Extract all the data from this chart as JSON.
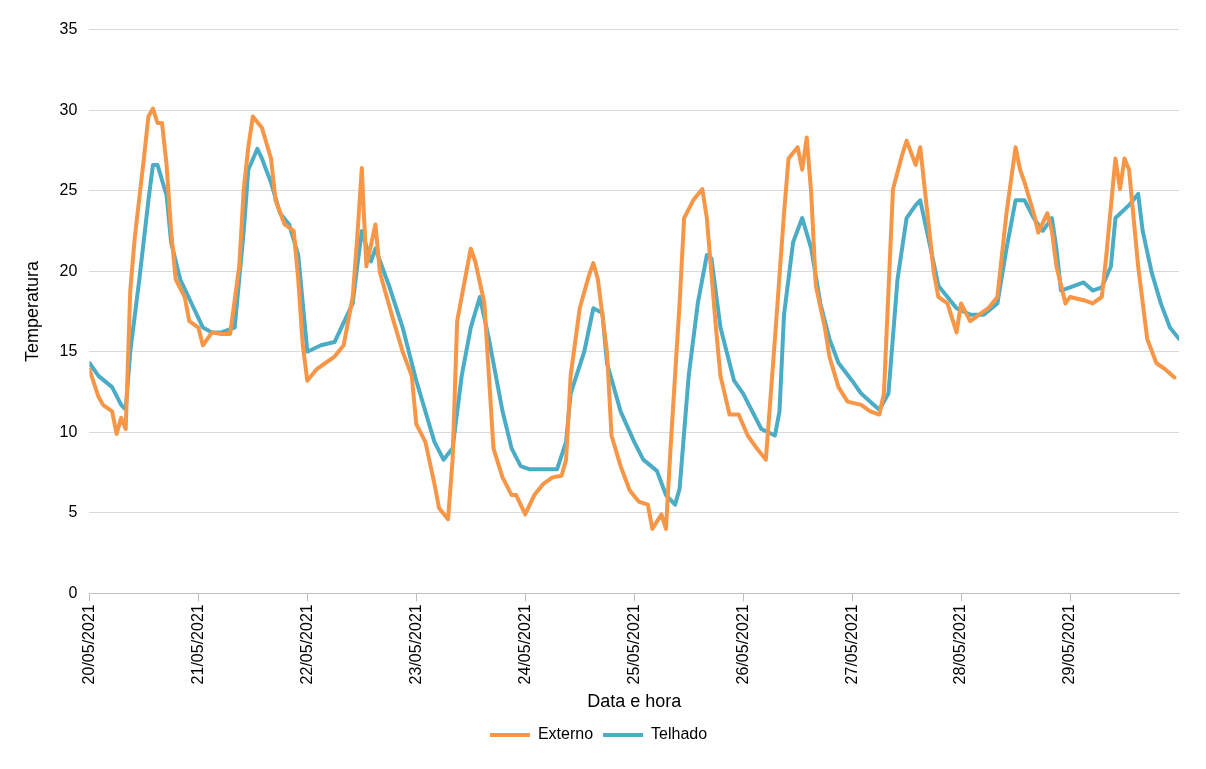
{
  "chart_data": {
    "type": "line",
    "xlabel": "Data e hora",
    "ylabel": "Temperatura",
    "xlim": [
      "2021-05-20",
      "2021-05-30"
    ],
    "xticks": [
      {
        "value": "2021-05-20",
        "label": "20/05/2021"
      },
      {
        "value": "2021-05-21",
        "label": "21/05/2021"
      },
      {
        "value": "2021-05-22",
        "label": "22/05/2021"
      },
      {
        "value": "2021-05-23",
        "label": "23/05/2021"
      },
      {
        "value": "2021-05-24",
        "label": "24/05/2021"
      },
      {
        "value": "2021-05-25",
        "label": "25/05/2021"
      },
      {
        "value": "2021-05-26",
        "label": "26/05/2021"
      },
      {
        "value": "2021-05-27",
        "label": "27/05/2021"
      },
      {
        "value": "2021-05-28",
        "label": "28/05/2021"
      },
      {
        "value": "2021-05-29",
        "label": "29/05/2021"
      }
    ],
    "ylim": [
      0,
      35
    ],
    "yticks": [
      0,
      5,
      10,
      15,
      20,
      25,
      30,
      35
    ],
    "grid": "y",
    "legend": "bottom",
    "marker": "none",
    "line_style": "solid",
    "series": [
      {
        "name": "Externo",
        "color": "#f79646",
        "x": [
          "2021-05-20T00:00",
          "2021-05-20T02:00",
          "2021-05-20T03:00",
          "2021-05-20T05:00",
          "2021-05-20T06:00",
          "2021-05-20T07:00",
          "2021-05-20T08:00",
          "2021-05-20T09:00",
          "2021-05-20T10:00",
          "2021-05-20T12:00",
          "2021-05-20T13:00",
          "2021-05-20T14:00",
          "2021-05-20T15:00",
          "2021-05-20T16:00",
          "2021-05-20T17:00",
          "2021-05-20T18:00",
          "2021-05-20T19:00",
          "2021-05-20T21:00",
          "2021-05-20T22:00",
          "2021-05-21T00:00",
          "2021-05-21T01:00",
          "2021-05-21T03:00",
          "2021-05-21T05:00",
          "2021-05-21T07:00",
          "2021-05-21T09:00",
          "2021-05-21T10:00",
          "2021-05-21T11:00",
          "2021-05-21T12:00",
          "2021-05-21T14:00",
          "2021-05-21T16:00",
          "2021-05-21T17:00",
          "2021-05-21T19:00",
          "2021-05-21T21:00",
          "2021-05-21T22:00",
          "2021-05-21T23:00",
          "2021-05-22T00:00",
          "2021-05-22T02:00",
          "2021-05-22T04:00",
          "2021-05-22T06:00",
          "2021-05-22T08:00",
          "2021-05-22T10:00",
          "2021-05-22T11:00",
          "2021-05-22T12:00",
          "2021-05-22T13:00",
          "2021-05-22T15:00",
          "2021-05-22T16:00",
          "2021-05-22T19:00",
          "2021-05-22T21:00",
          "2021-05-22T23:00",
          "2021-05-23T00:00",
          "2021-05-23T02:00",
          "2021-05-23T04:00",
          "2021-05-23T05:00",
          "2021-05-23T07:00",
          "2021-05-23T08:00",
          "2021-05-23T09:00",
          "2021-05-23T11:00",
          "2021-05-23T12:00",
          "2021-05-23T13:00",
          "2021-05-23T15:00",
          "2021-05-23T16:00",
          "2021-05-23T17:00",
          "2021-05-23T19:00",
          "2021-05-23T21:00",
          "2021-05-23T22:00",
          "2021-05-24T00:00",
          "2021-05-24T02:00",
          "2021-05-24T04:00",
          "2021-05-24T06:00",
          "2021-05-24T08:00",
          "2021-05-24T09:00",
          "2021-05-24T10:00",
          "2021-05-24T12:00",
          "2021-05-24T14:00",
          "2021-05-24T15:00",
          "2021-05-24T16:00",
          "2021-05-24T18:00",
          "2021-05-24T19:00",
          "2021-05-24T21:00",
          "2021-05-24T23:00",
          "2021-05-25T01:00",
          "2021-05-25T03:00",
          "2021-05-25T04:00",
          "2021-05-25T06:00",
          "2021-05-25T07:00",
          "2021-05-25T08:00",
          "2021-05-25T10:00",
          "2021-05-25T11:00",
          "2021-05-25T13:00",
          "2021-05-25T15:00",
          "2021-05-25T16:00",
          "2021-05-25T18:00",
          "2021-05-25T19:00",
          "2021-05-25T21:00",
          "2021-05-25T23:00",
          "2021-05-26T01:00",
          "2021-05-26T03:00",
          "2021-05-26T05:00",
          "2021-05-26T07:00",
          "2021-05-26T09:00",
          "2021-05-26T10:00",
          "2021-05-26T12:00",
          "2021-05-26T13:00",
          "2021-05-26T14:00",
          "2021-05-26T15:00",
          "2021-05-26T16:00",
          "2021-05-26T18:00",
          "2021-05-26T19:00",
          "2021-05-26T21:00",
          "2021-05-26T23:00",
          "2021-05-27T02:00",
          "2021-05-27T04:00",
          "2021-05-27T06:00",
          "2021-05-27T07:00",
          "2021-05-27T09:00",
          "2021-05-27T11:00",
          "2021-05-27T12:00",
          "2021-05-27T14:00",
          "2021-05-27T15:00",
          "2021-05-27T16:00",
          "2021-05-27T18:00",
          "2021-05-27T19:00",
          "2021-05-27T21:00",
          "2021-05-27T23:00",
          "2021-05-28T00:00",
          "2021-05-28T02:00",
          "2021-05-28T04:00",
          "2021-05-28T06:00",
          "2021-05-28T08:00",
          "2021-05-28T10:00",
          "2021-05-28T12:00",
          "2021-05-28T13:00",
          "2021-05-28T14:00",
          "2021-05-28T16:00",
          "2021-05-28T17:00",
          "2021-05-28T19:00",
          "2021-05-28T20:00",
          "2021-05-28T21:00",
          "2021-05-28T23:00",
          "2021-05-29T00:00",
          "2021-05-29T03:00",
          "2021-05-29T05:00",
          "2021-05-29T07:00",
          "2021-05-29T08:00",
          "2021-05-29T10:00",
          "2021-05-29T11:00",
          "2021-05-29T12:00",
          "2021-05-29T13:00",
          "2021-05-29T15:00",
          "2021-05-29T17:00",
          "2021-05-29T19:00",
          "2021-05-29T21:00",
          "2021-05-29T23:00"
        ],
        "values": [
          13.9,
          12.2,
          11.7,
          11.3,
          9.9,
          10.9,
          10.2,
          18.8,
          22.1,
          27,
          29.6,
          30.1,
          29.2,
          29.2,
          26.6,
          22.5,
          19.5,
          18.4,
          16.9,
          16.5,
          15.4,
          16.2,
          16.1,
          16.1,
          20.3,
          25.1,
          27.7,
          29.6,
          28.9,
          27,
          24.4,
          22.9,
          22.5,
          19.5,
          15.4,
          13.2,
          13.9,
          14.3,
          14.7,
          15.4,
          18.4,
          22.1,
          26.4,
          20.3,
          22.9,
          19.9,
          16.9,
          15,
          13.5,
          10.5,
          9.4,
          6.8,
          5.3,
          4.6,
          8.3,
          16.9,
          19.9,
          21.4,
          20.6,
          18,
          13.5,
          9,
          7.2,
          6.1,
          6.1,
          4.9,
          6.1,
          6.8,
          7.2,
          7.3,
          8.3,
          13.5,
          17.7,
          19.7,
          20.5,
          19.5,
          15,
          9.8,
          7.9,
          6.4,
          5.7,
          5.5,
          4,
          4.9,
          4,
          9,
          18,
          23.3,
          24.4,
          25.1,
          23.3,
          16.5,
          13.5,
          11.1,
          11.1,
          9.8,
          9,
          8.3,
          15.8,
          23.6,
          27,
          27.7,
          26.3,
          28.3,
          24.8,
          19.1,
          16.5,
          14.7,
          12.8,
          11.9,
          11.7,
          11.3,
          11.1,
          12.4,
          25.1,
          27.2,
          28.1,
          26.6,
          27.7,
          25.1,
          19.9,
          18.4,
          18,
          16.2,
          18,
          16.9,
          17.3,
          17.7,
          18.4,
          23.6,
          27.7,
          26.3,
          25.5,
          23.6,
          22.4,
          23.6,
          22.5,
          20.3,
          18,
          18.4,
          18.2,
          18,
          18.4,
          21,
          27,
          25.1,
          27,
          26.3,
          20.3,
          15.8,
          14.3,
          13.9,
          13.4
        ]
      },
      {
        "name": "Telhado",
        "color": "#4bacc6",
        "x": [
          "2021-05-20T00:00",
          "2021-05-20T02:00",
          "2021-05-20T05:00",
          "2021-05-20T07:00",
          "2021-05-20T08:00",
          "2021-05-20T09:00",
          "2021-05-20T11:00",
          "2021-05-20T13:00",
          "2021-05-20T14:00",
          "2021-05-20T15:00",
          "2021-05-20T17:00",
          "2021-05-20T18:00",
          "2021-05-20T20:00",
          "2021-05-20T23:00",
          "2021-05-21T01:00",
          "2021-05-21T03:00",
          "2021-05-21T05:00",
          "2021-05-21T08:00",
          "2021-05-21T10:00",
          "2021-05-21T11:00",
          "2021-05-21T13:00",
          "2021-05-21T14:00",
          "2021-05-21T16:00",
          "2021-05-21T18:00",
          "2021-05-21T20:00",
          "2021-05-21T22:00",
          "2021-05-21T23:00",
          "2021-05-22T00:00",
          "2021-05-22T03:00",
          "2021-05-22T06:00",
          "2021-05-22T10:00",
          "2021-05-22T11:00",
          "2021-05-22T12:00",
          "2021-05-22T14:00",
          "2021-05-22T15:00",
          "2021-05-22T18:00",
          "2021-05-22T21:00",
          "2021-05-23T00:00",
          "2021-05-23T04:00",
          "2021-05-23T06:00",
          "2021-05-23T08:00",
          "2021-05-23T10:00",
          "2021-05-23T12:00",
          "2021-05-23T14:00",
          "2021-05-23T16:00",
          "2021-05-23T19:00",
          "2021-05-23T21:00",
          "2021-05-23T23:00",
          "2021-05-24T01:00",
          "2021-05-24T05:00",
          "2021-05-24T07:00",
          "2021-05-24T09:00",
          "2021-05-24T10:00",
          "2021-05-24T13:00",
          "2021-05-24T15:00",
          "2021-05-24T17:00",
          "2021-05-24T18:00",
          "2021-05-24T21:00",
          "2021-05-25T00:00",
          "2021-05-25T02:00",
          "2021-05-25T05:00",
          "2021-05-25T07:00",
          "2021-05-25T09:00",
          "2021-05-25T10:00",
          "2021-05-25T12:00",
          "2021-05-25T14:00",
          "2021-05-25T16:00",
          "2021-05-25T17:00",
          "2021-05-25T19:00",
          "2021-05-25T22:00",
          "2021-05-26T00:00",
          "2021-05-26T02:00",
          "2021-05-26T04:00",
          "2021-05-26T07:00",
          "2021-05-26T08:00",
          "2021-05-26T09:00",
          "2021-05-26T11:00",
          "2021-05-26T13:00",
          "2021-05-26T15:00",
          "2021-05-26T17:00",
          "2021-05-26T19:00",
          "2021-05-26T21:00",
          "2021-05-27T00:00",
          "2021-05-27T02:00",
          "2021-05-27T04:00",
          "2021-05-27T06:00",
          "2021-05-27T08:00",
          "2021-05-27T10:00",
          "2021-05-27T12:00",
          "2021-05-27T14:00",
          "2021-05-27T15:00",
          "2021-05-27T17:00",
          "2021-05-27T19:00",
          "2021-05-27T21:00",
          "2021-05-27T23:00",
          "2021-05-28T02:00",
          "2021-05-28T05:00",
          "2021-05-28T08:00",
          "2021-05-28T10:00",
          "2021-05-28T12:00",
          "2021-05-28T14:00",
          "2021-05-28T16:00",
          "2021-05-28T18:00",
          "2021-05-28T20:00",
          "2021-05-28T21:00",
          "2021-05-28T22:00",
          "2021-05-29T00:00",
          "2021-05-29T03:00",
          "2021-05-29T05:00",
          "2021-05-29T07:00",
          "2021-05-29T09:00",
          "2021-05-29T10:00",
          "2021-05-29T13:00",
          "2021-05-29T15:00",
          "2021-05-29T16:00",
          "2021-05-29T18:00",
          "2021-05-29T20:00",
          "2021-05-29T22:00",
          "2021-05-30T00:00"
        ],
        "values": [
          14.3,
          13.5,
          12.8,
          11.7,
          11.4,
          15,
          19.5,
          24.4,
          26.6,
          26.6,
          24.7,
          21.8,
          19.5,
          17.7,
          16.5,
          16.2,
          16.2,
          16.5,
          22.5,
          26.3,
          27.6,
          27,
          25.5,
          23.6,
          22.9,
          21,
          18,
          15,
          15.4,
          15.6,
          18,
          20.3,
          22.5,
          20.6,
          21.4,
          19.1,
          16.5,
          13.2,
          9.4,
          8.3,
          9,
          13.5,
          16.5,
          18.4,
          15.8,
          11.3,
          9,
          7.9,
          7.7,
          7.7,
          7.7,
          9.4,
          12.4,
          15,
          17.7,
          17.4,
          14.3,
          11.3,
          9.4,
          8.3,
          7.6,
          6.1,
          5.5,
          6.5,
          13.5,
          18,
          21,
          20.8,
          16.5,
          13.2,
          12.4,
          11.3,
          10.2,
          9.8,
          11.3,
          17.3,
          21.8,
          23.3,
          21.4,
          18,
          15.8,
          14.3,
          13.2,
          12.4,
          11.9,
          11.4,
          12.4,
          19.5,
          23.3,
          24.1,
          24.4,
          21.8,
          19.1,
          18.4,
          17.7,
          17.3,
          17.3,
          18,
          21.4,
          24.4,
          24.4,
          23.3,
          22.5,
          23.3,
          21.4,
          18.8,
          19,
          19.3,
          18.8,
          19,
          20.3,
          23.3,
          24.1,
          24.8,
          22.5,
          19.9,
          18,
          16.5,
          15.8
        ]
      }
    ]
  }
}
